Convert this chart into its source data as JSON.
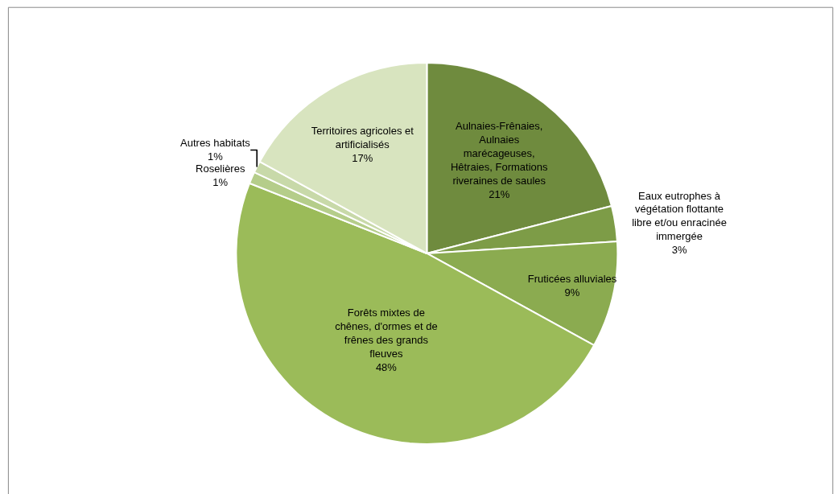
{
  "chart_data": {
    "type": "pie",
    "categories": [
      "Aulnaies-Frênaies,\nAulnaies\nmarécageuses,\nHêtraies, Formations\nriveraines de saules",
      "Eaux eutrophes à\nvégétation flottante\nlibre et/ou enracinée\nimmergée",
      "Fruticées alluviales",
      "Forêts mixtes de\nchênes, d'ormes et de\nfrênes des grands\nfleuves",
      "Roselières",
      "Autres habitats",
      "Territoires agricoles et\nartificialisés"
    ],
    "values": [
      21,
      3,
      9,
      48,
      1,
      1,
      17
    ],
    "colors": [
      "#6f8b3e",
      "#7d9c47",
      "#8bab50",
      "#9bbb59",
      "#b5cd8a",
      "#c8d9a9",
      "#d8e4bf"
    ],
    "value_labels": [
      "21%",
      "3%",
      "9%",
      "48%",
      "1%",
      "1%",
      "17%"
    ],
    "legend": false
  }
}
